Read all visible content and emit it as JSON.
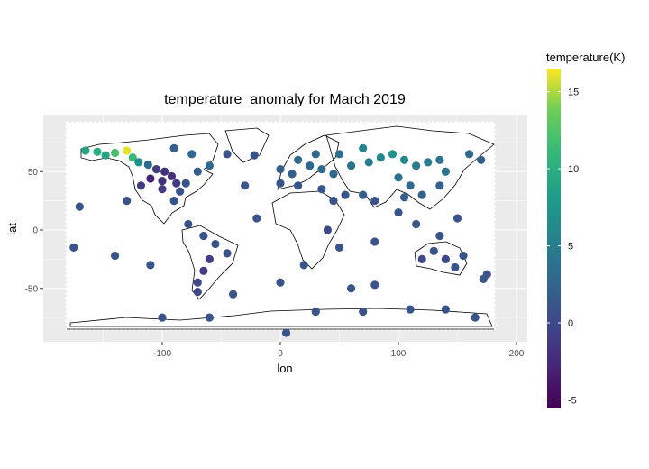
{
  "chart_data": {
    "type": "heatmap",
    "title": "temperature_anomaly for March 2019",
    "xlabel": "lon",
    "ylabel": "lat",
    "x_ticks": [
      -100,
      0,
      100,
      200
    ],
    "y_ticks": [
      50,
      0,
      -50
    ],
    "xlim": [
      -190,
      205
    ],
    "ylim": [
      -95,
      98
    ],
    "grid": true,
    "legend": {
      "title": "temperature(K)",
      "placement": "right",
      "colormap": "viridis",
      "min": -5.5,
      "max": 16.5,
      "ticks": [
        15,
        10,
        5,
        0,
        -5
      ]
    },
    "cells": [
      {
        "lon": -165,
        "lat": 68,
        "value": 9
      },
      {
        "lon": -155,
        "lat": 67,
        "value": 10
      },
      {
        "lon": -148,
        "lat": 64,
        "value": 9
      },
      {
        "lon": -140,
        "lat": 66,
        "value": 12
      },
      {
        "lon": -130,
        "lat": 68,
        "value": 16
      },
      {
        "lon": -125,
        "lat": 62,
        "value": 11
      },
      {
        "lon": -120,
        "lat": 58,
        "value": 7
      },
      {
        "lon": -112,
        "lat": 56,
        "value": 3
      },
      {
        "lon": -105,
        "lat": 52,
        "value": -1
      },
      {
        "lon": -98,
        "lat": 50,
        "value": -2
      },
      {
        "lon": -92,
        "lat": 46,
        "value": -2
      },
      {
        "lon": -110,
        "lat": 44,
        "value": -3
      },
      {
        "lon": -100,
        "lat": 42,
        "value": -2
      },
      {
        "lon": -88,
        "lat": 40,
        "value": -1
      },
      {
        "lon": -80,
        "lat": 40,
        "value": 1
      },
      {
        "lon": -118,
        "lat": 38,
        "value": -1
      },
      {
        "lon": -100,
        "lat": 35,
        "value": -1
      },
      {
        "lon": -85,
        "lat": 33,
        "value": 1
      },
      {
        "lon": -90,
        "lat": 25,
        "value": 1
      },
      {
        "lon": -70,
        "lat": 50,
        "value": 2
      },
      {
        "lon": -60,
        "lat": 55,
        "value": 3
      },
      {
        "lon": -75,
        "lat": 65,
        "value": 3
      },
      {
        "lon": -90,
        "lat": 70,
        "value": 2
      },
      {
        "lon": -45,
        "lat": 65,
        "value": 1
      },
      {
        "lon": -22,
        "lat": 64,
        "value": 1
      },
      {
        "lon": -65,
        "lat": -5,
        "value": 1
      },
      {
        "lon": -55,
        "lat": -12,
        "value": 1
      },
      {
        "lon": -60,
        "lat": -25,
        "value": -1
      },
      {
        "lon": -65,
        "lat": -35,
        "value": -1
      },
      {
        "lon": -70,
        "lat": -45,
        "value": 0
      },
      {
        "lon": -70,
        "lat": -53,
        "value": 0
      },
      {
        "lon": -45,
        "lat": -20,
        "value": 1
      },
      {
        "lon": -78,
        "lat": 5,
        "value": 1
      },
      {
        "lon": 0,
        "lat": 52,
        "value": 2
      },
      {
        "lon": 10,
        "lat": 48,
        "value": 2
      },
      {
        "lon": 15,
        "lat": 60,
        "value": 3
      },
      {
        "lon": 25,
        "lat": 55,
        "value": 3
      },
      {
        "lon": 35,
        "lat": 52,
        "value": 3
      },
      {
        "lon": 45,
        "lat": 48,
        "value": 3
      },
      {
        "lon": 60,
        "lat": 55,
        "value": 4
      },
      {
        "lon": 75,
        "lat": 58,
        "value": 5
      },
      {
        "lon": 85,
        "lat": 62,
        "value": 6
      },
      {
        "lon": 95,
        "lat": 65,
        "value": 7
      },
      {
        "lon": 105,
        "lat": 60,
        "value": 6
      },
      {
        "lon": 115,
        "lat": 55,
        "value": 5
      },
      {
        "lon": 125,
        "lat": 58,
        "value": 5
      },
      {
        "lon": 135,
        "lat": 60,
        "value": 4
      },
      {
        "lon": 140,
        "lat": 50,
        "value": 4
      },
      {
        "lon": 70,
        "lat": 70,
        "value": 6
      },
      {
        "lon": 50,
        "lat": 65,
        "value": 4
      },
      {
        "lon": 30,
        "lat": 65,
        "value": 3
      },
      {
        "lon": 100,
        "lat": 45,
        "value": 4
      },
      {
        "lon": 110,
        "lat": 38,
        "value": 3
      },
      {
        "lon": 120,
        "lat": 30,
        "value": 2
      },
      {
        "lon": 105,
        "lat": 28,
        "value": 2
      },
      {
        "lon": 80,
        "lat": 25,
        "value": 1
      },
      {
        "lon": 70,
        "lat": 30,
        "value": 2
      },
      {
        "lon": 55,
        "lat": 30,
        "value": 1
      },
      {
        "lon": 45,
        "lat": 25,
        "value": 1
      },
      {
        "lon": 35,
        "lat": 35,
        "value": 1
      },
      {
        "lon": 15,
        "lat": 38,
        "value": 1
      },
      {
        "lon": 0,
        "lat": 40,
        "value": 1
      },
      {
        "lon": 135,
        "lat": 38,
        "value": 2
      },
      {
        "lon": 100,
        "lat": 15,
        "value": 1
      },
      {
        "lon": 115,
        "lat": 5,
        "value": 1
      },
      {
        "lon": 135,
        "lat": -5,
        "value": 1
      },
      {
        "lon": 130,
        "lat": -18,
        "value": 1
      },
      {
        "lon": 120,
        "lat": -25,
        "value": 0
      },
      {
        "lon": 140,
        "lat": -25,
        "value": 0
      },
      {
        "lon": 148,
        "lat": -32,
        "value": 1
      },
      {
        "lon": 155,
        "lat": -22,
        "value": 1
      },
      {
        "lon": 172,
        "lat": -42,
        "value": 1
      },
      {
        "lon": 175,
        "lat": -38,
        "value": 1
      },
      {
        "lon": 20,
        "lat": -30,
        "value": 1
      },
      {
        "lon": 40,
        "lat": 0,
        "value": 0
      },
      {
        "lon": 50,
        "lat": -15,
        "value": 1
      },
      {
        "lon": 60,
        "lat": -50,
        "value": 1
      },
      {
        "lon": 80,
        "lat": -47,
        "value": 1
      },
      {
        "lon": -140,
        "lat": -22,
        "value": 1
      },
      {
        "lon": -110,
        "lat": -30,
        "value": 1
      },
      {
        "lon": -175,
        "lat": -15,
        "value": 1
      },
      {
        "lon": -170,
        "lat": 20,
        "value": 1
      },
      {
        "lon": -130,
        "lat": 25,
        "value": 1
      },
      {
        "lon": -30,
        "lat": 38,
        "value": 1
      },
      {
        "lon": -20,
        "lat": 10,
        "value": 1
      },
      {
        "lon": 0,
        "lat": -45,
        "value": 1
      },
      {
        "lon": -40,
        "lat": -55,
        "value": 1
      },
      {
        "lon": -100,
        "lat": -75,
        "value": 1
      },
      {
        "lon": -60,
        "lat": -75,
        "value": 1
      },
      {
        "lon": 30,
        "lat": -70,
        "value": 1
      },
      {
        "lon": 70,
        "lat": -70,
        "value": 1
      },
      {
        "lon": 110,
        "lat": -68,
        "value": 1
      },
      {
        "lon": 140,
        "lat": -68,
        "value": 1
      },
      {
        "lon": 165,
        "lat": -75,
        "value": 1
      },
      {
        "lon": 5,
        "lat": -88,
        "value": 1
      },
      {
        "lon": 80,
        "lat": -10,
        "value": 1
      },
      {
        "lon": 150,
        "lat": 10,
        "value": 1
      },
      {
        "lon": 170,
        "lat": 60,
        "value": 2
      },
      {
        "lon": 160,
        "lat": 65,
        "value": 3
      }
    ]
  }
}
